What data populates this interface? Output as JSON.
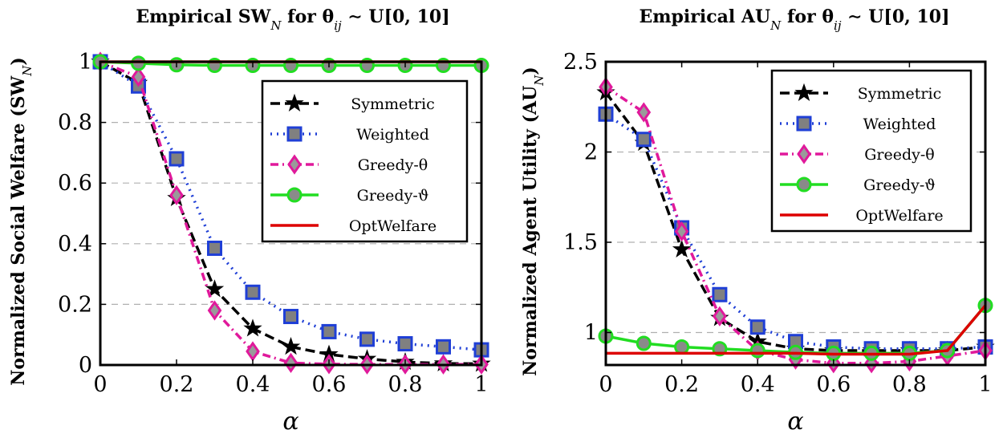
{
  "chart_data": [
    {
      "type": "line",
      "title": "Empirical SW_N for θ_ij ∼ U[0, 10]",
      "xlabel": "α",
      "ylabel": "Normalized Social Welfare (SW_N)",
      "xlim": [
        0,
        1
      ],
      "ylim": [
        0,
        1
      ],
      "xticks": [
        "0",
        "0.2",
        "0.4",
        "0.6",
        "0.8",
        "1"
      ],
      "yticks": [
        "0",
        "0.2",
        "0.4",
        "0.6",
        "0.8",
        "1"
      ],
      "grid": "horizontal dashed",
      "legend_position": "top-right",
      "x": [
        0,
        0.1,
        0.2,
        0.3,
        0.4,
        0.5,
        0.6,
        0.7,
        0.8,
        0.9,
        1.0
      ],
      "series": [
        {
          "name": "Symmetric",
          "color": "#000000",
          "marker": "star",
          "dash": "dashed",
          "values": [
            1.0,
            0.93,
            0.55,
            0.25,
            0.12,
            0.06,
            0.035,
            0.02,
            0.01,
            0.005,
            0.004
          ]
        },
        {
          "name": "Weighted",
          "color": "#1f3fd6",
          "marker": "square",
          "dash": "dotted",
          "values": [
            1.0,
            0.92,
            0.68,
            0.385,
            0.24,
            0.16,
            0.11,
            0.085,
            0.07,
            0.06,
            0.05
          ]
        },
        {
          "name": "Greedy-θ",
          "color": "#e0199b",
          "marker": "diamond",
          "dash": "dashdot",
          "values": [
            1.0,
            0.95,
            0.56,
            0.18,
            0.045,
            0.007,
            0.003,
            0.002,
            0.002,
            0.002,
            0.002
          ]
        },
        {
          "name": "Greedy-ϑ",
          "color": "#22dd22",
          "marker": "circle",
          "dash": "solid",
          "values": [
            1.0,
            0.995,
            0.99,
            0.988,
            0.988,
            0.988,
            0.988,
            0.988,
            0.988,
            0.988,
            0.988
          ]
        },
        {
          "name": "OptWelfare",
          "color": "#dd0000",
          "marker": "none",
          "dash": "solid",
          "values": [
            1.0,
            1.0,
            1.0,
            1.0,
            1.0,
            1.0,
            1.0,
            1.0,
            1.0,
            1.0,
            1.0
          ]
        }
      ]
    },
    {
      "type": "line",
      "title": "Empirical AU_N for θ_ij ∼ U[0, 10]",
      "xlabel": "α",
      "ylabel": "Normalized Agent Utility (AU_N)",
      "xlim": [
        0,
        1
      ],
      "ylim": [
        0.82,
        2.5
      ],
      "xticks": [
        "0",
        "0.2",
        "0.4",
        "0.6",
        "0.8",
        "1"
      ],
      "yticks": [
        "1",
        "1.5",
        "2",
        "2.5"
      ],
      "grid": "horizontal dashed",
      "legend_position": "top-right",
      "x": [
        0,
        0.1,
        0.2,
        0.3,
        0.4,
        0.5,
        0.6,
        0.7,
        0.8,
        0.9,
        1.0
      ],
      "series": [
        {
          "name": "Symmetric",
          "color": "#000000",
          "marker": "star",
          "dash": "dashed",
          "values": [
            2.33,
            2.05,
            1.46,
            1.08,
            0.95,
            0.91,
            0.9,
            0.9,
            0.9,
            0.9,
            0.92
          ]
        },
        {
          "name": "Weighted",
          "color": "#1f3fd6",
          "marker": "square",
          "dash": "dotted",
          "values": [
            2.21,
            2.07,
            1.58,
            1.21,
            1.03,
            0.95,
            0.92,
            0.91,
            0.91,
            0.91,
            0.92
          ]
        },
        {
          "name": "Greedy-θ",
          "color": "#e0199b",
          "marker": "diamond",
          "dash": "dashdot",
          "values": [
            2.36,
            2.22,
            1.56,
            1.09,
            0.9,
            0.85,
            0.83,
            0.83,
            0.84,
            0.87,
            0.9
          ]
        },
        {
          "name": "Greedy-ϑ",
          "color": "#22dd22",
          "marker": "circle",
          "dash": "solid",
          "values": [
            0.98,
            0.94,
            0.92,
            0.91,
            0.9,
            0.89,
            0.885,
            0.885,
            0.885,
            0.9,
            1.15
          ]
        },
        {
          "name": "OptWelfare",
          "color": "#dd0000",
          "marker": "none",
          "dash": "solid",
          "values": [
            0.885,
            0.885,
            0.885,
            0.885,
            0.885,
            0.885,
            0.88,
            0.88,
            0.88,
            0.9,
            1.15
          ]
        }
      ]
    }
  ]
}
